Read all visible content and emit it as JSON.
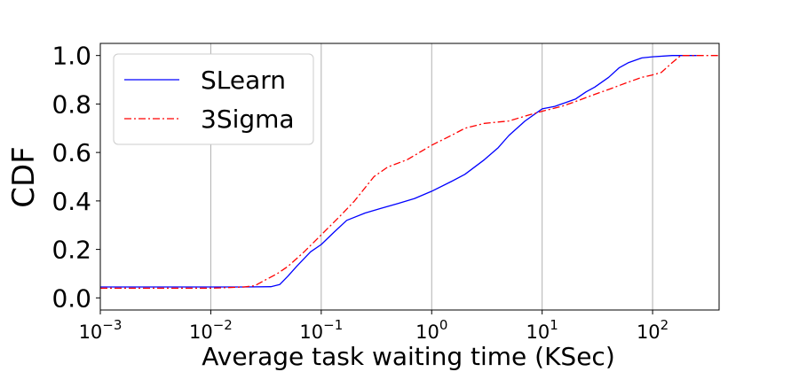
{
  "chart_data": {
    "type": "line",
    "xlabel": "Average task waiting time (KSec)",
    "ylabel": "CDF",
    "xscale": "log",
    "xlim": [
      0.001,
      400
    ],
    "ylim": [
      -0.05,
      1.05
    ],
    "grid": "x",
    "legend_position": "top-left",
    "xticks": [
      {
        "base": "10",
        "exp": "−3",
        "value": 0.001
      },
      {
        "base": "10",
        "exp": "−2",
        "value": 0.01
      },
      {
        "base": "10",
        "exp": "−1",
        "value": 0.1
      },
      {
        "base": "10",
        "exp": "0",
        "value": 1
      },
      {
        "base": "10",
        "exp": "1",
        "value": 10
      },
      {
        "base": "10",
        "exp": "2",
        "value": 100
      }
    ],
    "yticks": [
      {
        "label": "0.0",
        "value": 0.0
      },
      {
        "label": "0.2",
        "value": 0.2
      },
      {
        "label": "0.4",
        "value": 0.4
      },
      {
        "label": "0.6",
        "value": 0.6
      },
      {
        "label": "0.8",
        "value": 0.8
      },
      {
        "label": "1.0",
        "value": 1.0
      }
    ],
    "series": [
      {
        "name": "SLearn",
        "color": "#0000ff",
        "style": "solid",
        "points": [
          [
            0.001,
            0.045
          ],
          [
            0.01,
            0.045
          ],
          [
            0.02,
            0.045
          ],
          [
            0.035,
            0.046
          ],
          [
            0.042,
            0.055
          ],
          [
            0.05,
            0.09
          ],
          [
            0.06,
            0.13
          ],
          [
            0.08,
            0.19
          ],
          [
            0.1,
            0.22
          ],
          [
            0.13,
            0.27
          ],
          [
            0.17,
            0.32
          ],
          [
            0.25,
            0.35
          ],
          [
            0.35,
            0.37
          ],
          [
            0.5,
            0.39
          ],
          [
            0.7,
            0.41
          ],
          [
            1.0,
            0.44
          ],
          [
            1.5,
            0.48
          ],
          [
            2.0,
            0.51
          ],
          [
            3.0,
            0.57
          ],
          [
            4.0,
            0.62
          ],
          [
            5.0,
            0.67
          ],
          [
            7.0,
            0.73
          ],
          [
            10.0,
            0.78
          ],
          [
            13.0,
            0.79
          ],
          [
            15.0,
            0.8
          ],
          [
            20.0,
            0.82
          ],
          [
            25.0,
            0.85
          ],
          [
            30.0,
            0.87
          ],
          [
            40.0,
            0.91
          ],
          [
            50.0,
            0.95
          ],
          [
            60.0,
            0.97
          ],
          [
            80.0,
            0.99
          ],
          [
            100.0,
            0.995
          ],
          [
            150.0,
            1.0
          ],
          [
            250.0,
            1.0
          ]
        ]
      },
      {
        "name": "3Sigma",
        "color": "#ff0000",
        "style": "dashdot",
        "points": [
          [
            0.001,
            0.04
          ],
          [
            0.01,
            0.04
          ],
          [
            0.02,
            0.045
          ],
          [
            0.025,
            0.05
          ],
          [
            0.03,
            0.07
          ],
          [
            0.04,
            0.1
          ],
          [
            0.05,
            0.13
          ],
          [
            0.07,
            0.19
          ],
          [
            0.1,
            0.26
          ],
          [
            0.15,
            0.34
          ],
          [
            0.2,
            0.4
          ],
          [
            0.3,
            0.5
          ],
          [
            0.4,
            0.54
          ],
          [
            0.6,
            0.57
          ],
          [
            1.0,
            0.63
          ],
          [
            1.5,
            0.67
          ],
          [
            2.0,
            0.7
          ],
          [
            3.0,
            0.72
          ],
          [
            5.0,
            0.73
          ],
          [
            7.0,
            0.75
          ],
          [
            10.0,
            0.77
          ],
          [
            15.0,
            0.79
          ],
          [
            20.0,
            0.81
          ],
          [
            30.0,
            0.84
          ],
          [
            40.0,
            0.86
          ],
          [
            60.0,
            0.89
          ],
          [
            80.0,
            0.91
          ],
          [
            100.0,
            0.92
          ],
          [
            120.0,
            0.93
          ],
          [
            150.0,
            0.97
          ],
          [
            180.0,
            1.0
          ],
          [
            400.0,
            1.0
          ]
        ]
      }
    ]
  }
}
